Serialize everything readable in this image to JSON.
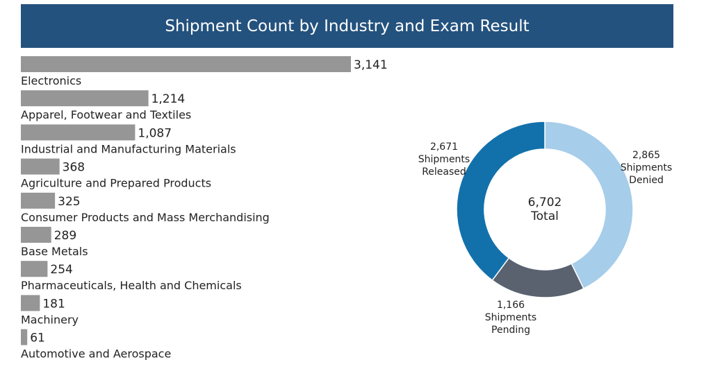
{
  "chart_data": [
    {
      "type": "bar",
      "orientation": "horizontal",
      "title": "Shipment Count by Industry and Exam Result",
      "categories": [
        "Electronics",
        "Apparel, Footwear and Textiles",
        "Industrial and Manufacturing Materials",
        "Agriculture and Prepared Products",
        "Consumer Products and Mass Merchandising",
        "Base Metals",
        "Pharmaceuticals, Health and Chemicals",
        "Machinery",
        "Automotive and Aerospace"
      ],
      "values": [
        3141,
        1214,
        1087,
        368,
        325,
        289,
        254,
        181,
        61
      ],
      "value_labels": [
        "3,141",
        "1,214",
        "1,087",
        "368",
        "325",
        "289",
        "254",
        "181",
        "61"
      ],
      "bar_color": "#969696"
    },
    {
      "type": "pie",
      "style": "donut",
      "center_value": "6,702",
      "center_label": "Total",
      "slices": [
        {
          "value": 2865,
          "value_label": "2,865",
          "label_line1": "Shipments",
          "label_line2": "Denied",
          "color": "#a6cde9"
        },
        {
          "value": 1166,
          "value_label": "1,166",
          "label_line1": "Shipments",
          "label_line2": "Pending",
          "color": "#5a6270"
        },
        {
          "value": 2671,
          "value_label": "2,671",
          "label_line1": "Shipments",
          "label_line2": "Released",
          "color": "#1271ab"
        }
      ]
    }
  ],
  "colors": {
    "title_bg": "#24527e",
    "title_text": "#ffffff"
  }
}
